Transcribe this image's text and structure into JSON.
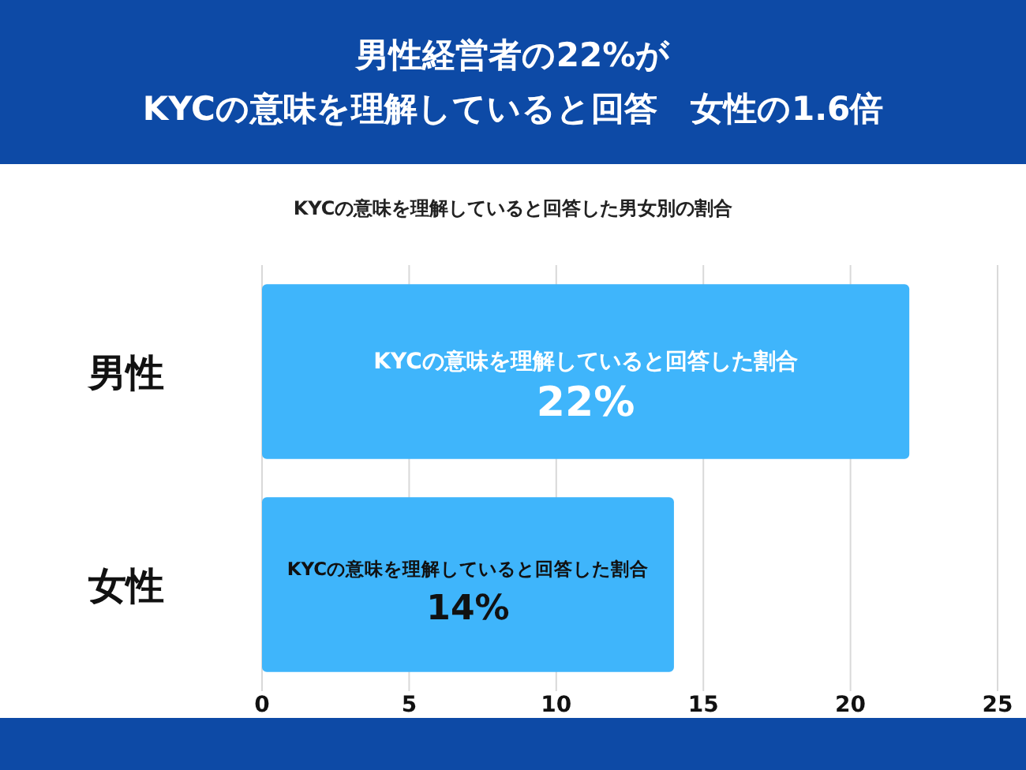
{
  "chart_data": {
    "type": "bar",
    "orientation": "horizontal",
    "title": "男性経営者の22%が\nKYCの意味を理解していると回答　女性の1.6倍",
    "subtitle": "KYCの意味を理解していると回答した男女別の割合",
    "categories": [
      "男性",
      "女性"
    ],
    "series": [
      {
        "name": "KYCの意味を理解していると回答した割合",
        "color": "#3fb5fb",
        "values": [
          22,
          14
        ],
        "value_labels": [
          "22%",
          "14%"
        ]
      }
    ],
    "xlim": [
      0,
      25
    ],
    "xticks": [
      0,
      5,
      10,
      15,
      20,
      25
    ],
    "grid": "x"
  }
}
